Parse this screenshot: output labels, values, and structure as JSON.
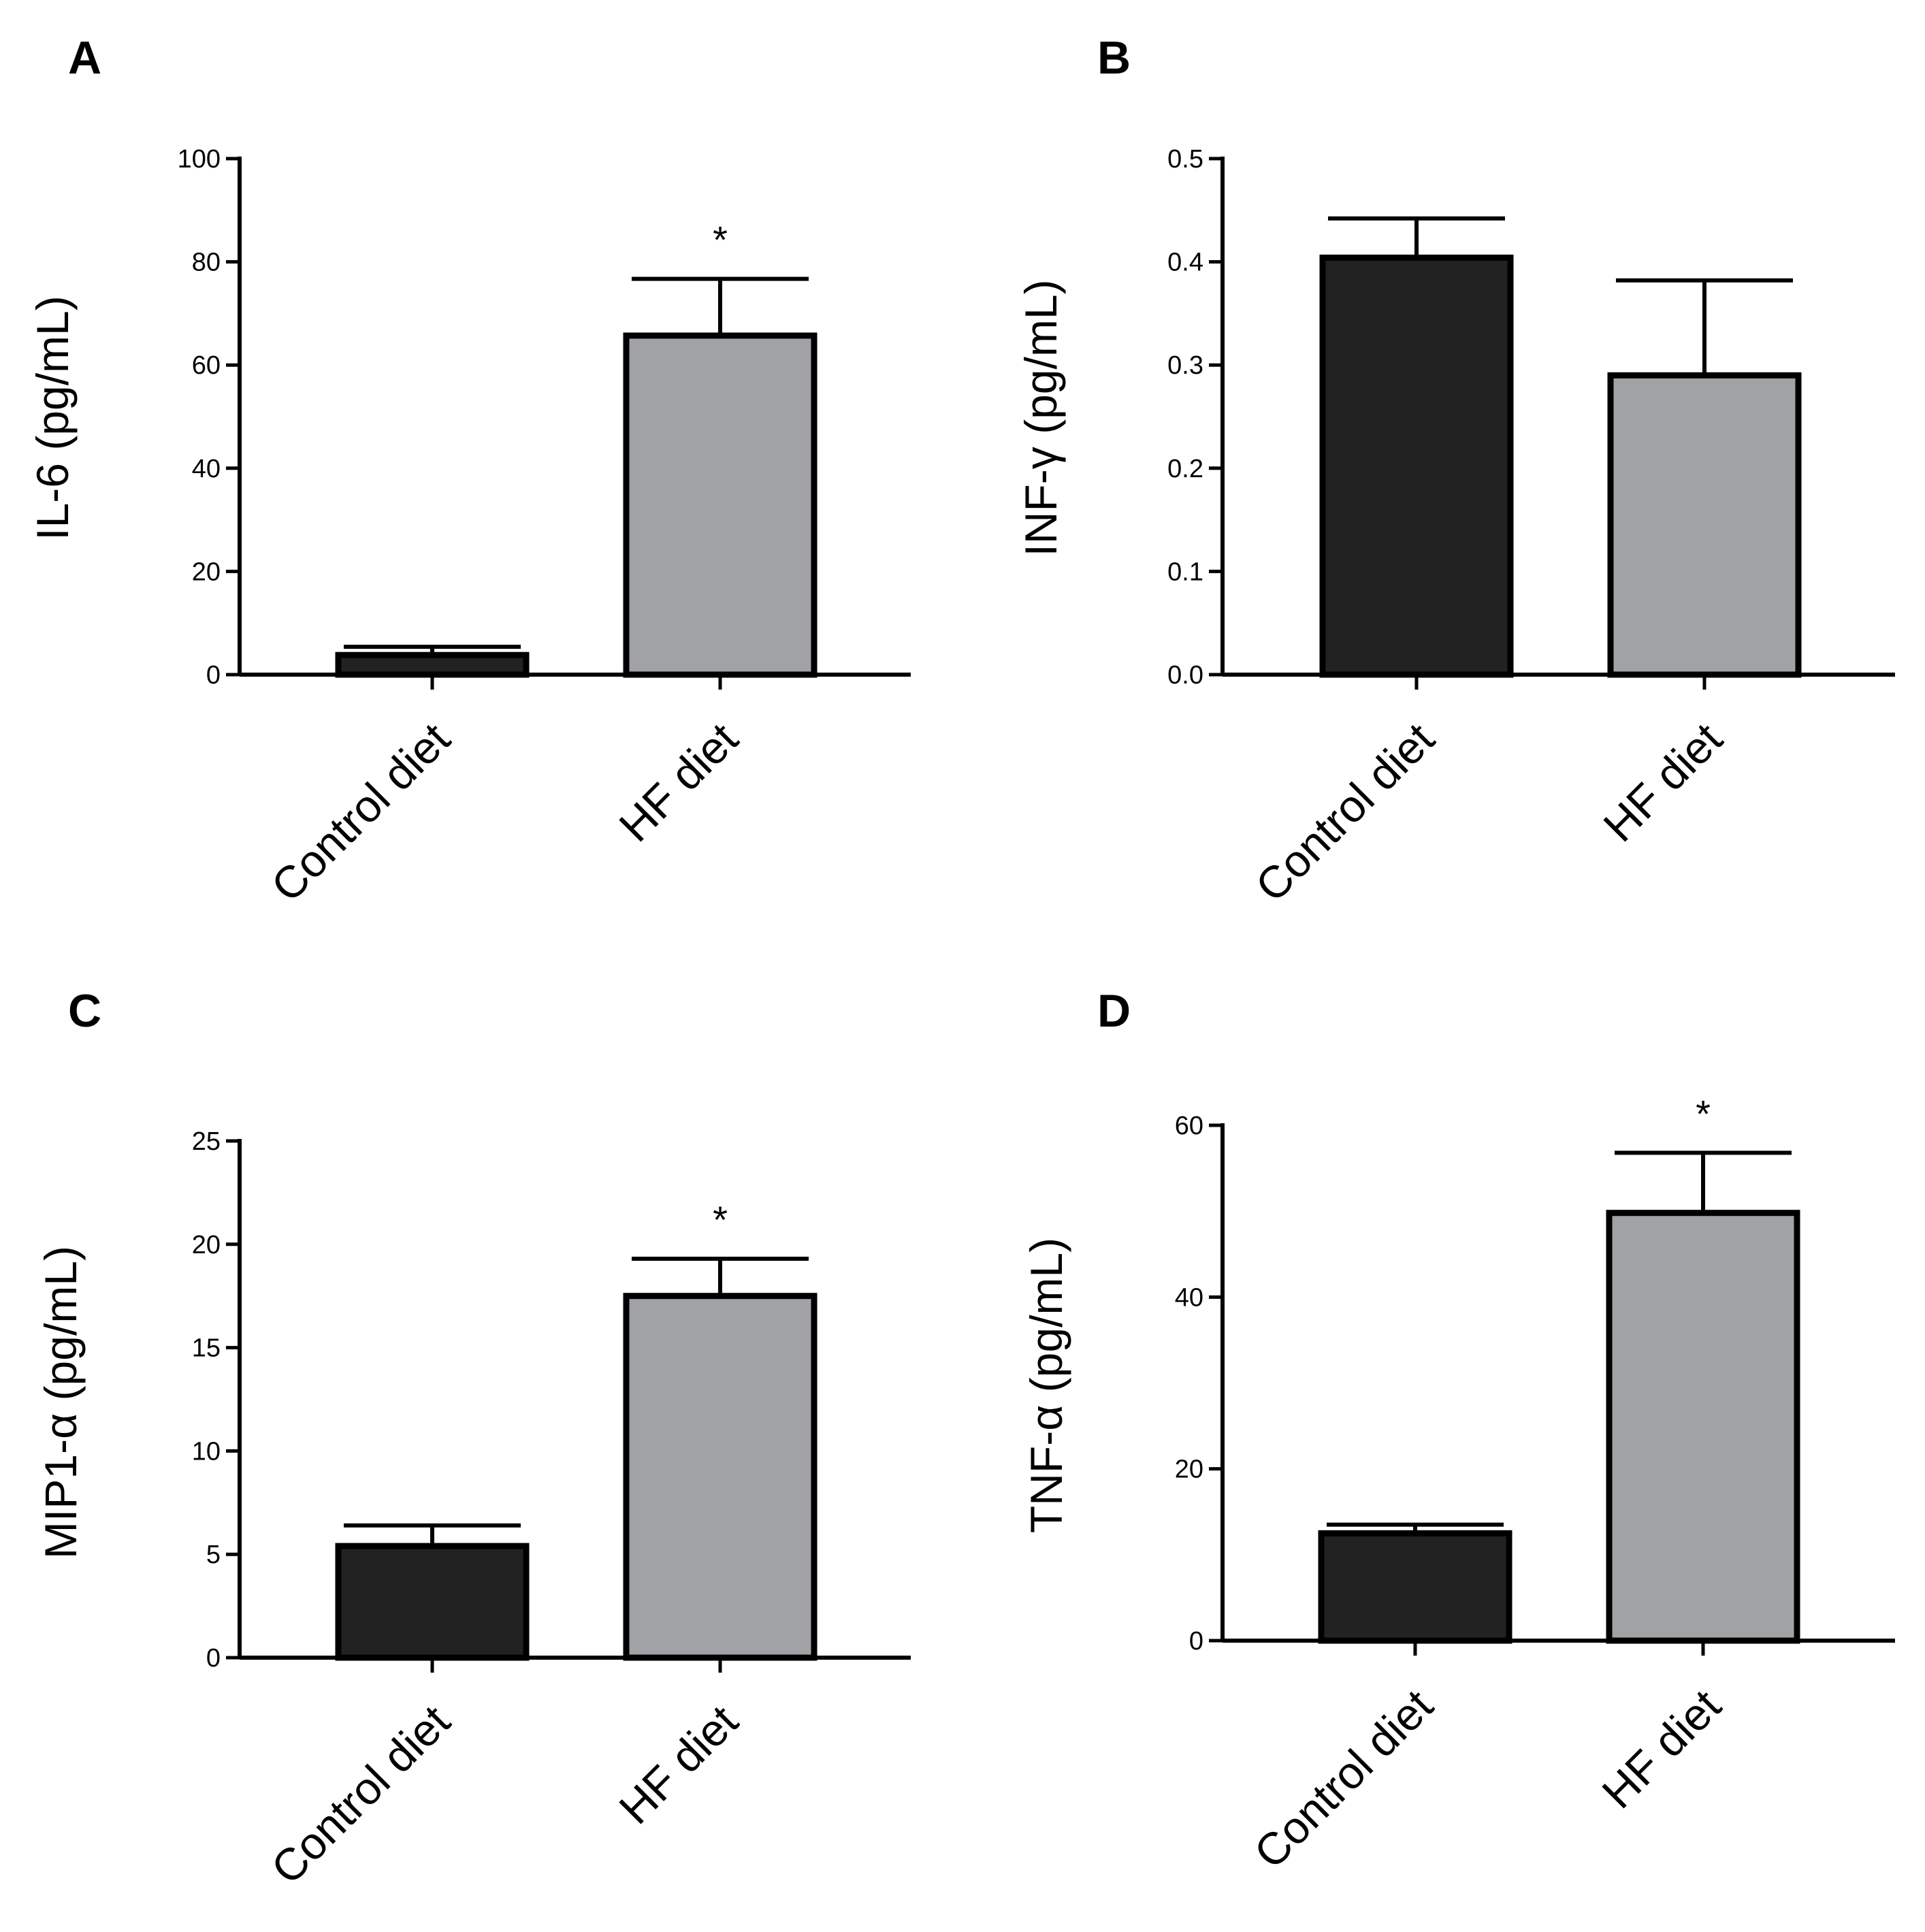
{
  "colors": {
    "control": "#222222",
    "hf": "#a1a2a6",
    "axis": "#000000"
  },
  "chart_data": [
    {
      "panel": "A",
      "type": "bar",
      "ylabel": "IL-6 (pg/mL)",
      "ylim": [
        0,
        100
      ],
      "yticks": [
        "0",
        "20",
        "40",
        "60",
        "80",
        "100"
      ],
      "ytick_values": [
        0,
        20,
        40,
        60,
        80,
        100
      ],
      "categories": [
        "Control diet",
        "HF diet"
      ],
      "values": [
        3.8,
        65.7
      ],
      "errors": [
        1.6,
        11.0
      ],
      "significance": [
        "",
        "*"
      ]
    },
    {
      "panel": "B",
      "type": "bar",
      "ylabel": "INF-γ (pg/mL)",
      "ylim": [
        0,
        0.5
      ],
      "yticks": [
        "0.0",
        "0.1",
        "0.2",
        "0.3",
        "0.4",
        "0.5"
      ],
      "ytick_values": [
        0,
        0.1,
        0.2,
        0.3,
        0.4,
        0.5
      ],
      "categories": [
        "Control diet",
        "HF diet"
      ],
      "values": [
        0.404,
        0.29
      ],
      "errors": [
        0.038,
        0.092
      ],
      "significance": [
        "",
        ""
      ]
    },
    {
      "panel": "C",
      "type": "bar",
      "ylabel": "MIP1-α (pg/mL)",
      "ylim": [
        0,
        25
      ],
      "yticks": [
        "0",
        "5",
        "10",
        "15",
        "20",
        "25"
      ],
      "ytick_values": [
        0,
        5,
        10,
        15,
        20,
        25
      ],
      "categories": [
        "Control diet",
        "HF diet"
      ],
      "values": [
        5.4,
        17.5
      ],
      "errors": [
        1.0,
        1.8
      ],
      "significance": [
        "",
        "*"
      ]
    },
    {
      "panel": "D",
      "type": "bar",
      "ylabel": "TNF-α (pg/mL)",
      "ylim": [
        0,
        60
      ],
      "yticks": [
        "0",
        "20",
        "40",
        "60"
      ],
      "ytick_values": [
        0,
        20,
        40,
        60
      ],
      "categories": [
        "Control diet",
        "HF diet"
      ],
      "values": [
        12.5,
        49.8
      ],
      "errors": [
        1.0,
        7.0
      ],
      "significance": [
        "",
        "*"
      ]
    }
  ]
}
